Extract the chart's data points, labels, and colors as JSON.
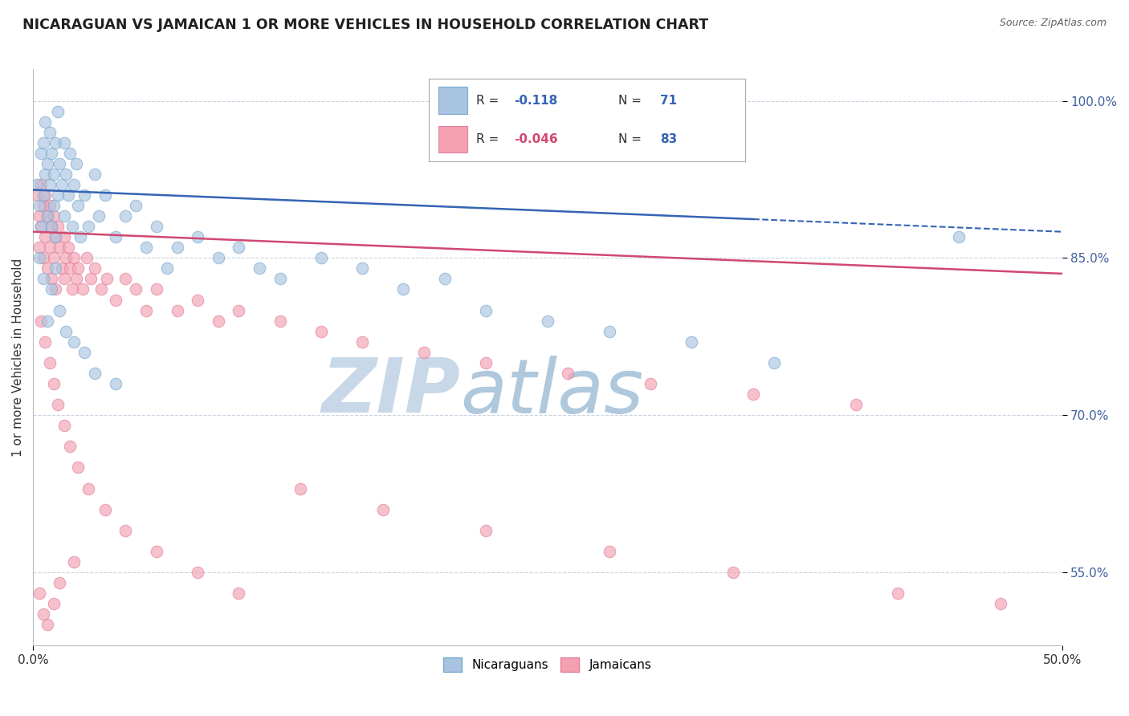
{
  "title": "NICARAGUAN VS JAMAICAN 1 OR MORE VEHICLES IN HOUSEHOLD CORRELATION CHART",
  "source": "Source: ZipAtlas.com",
  "ylabel": "1 or more Vehicles in Household",
  "xmin": 0.0,
  "xmax": 50.0,
  "ymin": 48.0,
  "ymax": 103.0,
  "ytick_vals": [
    55.0,
    70.0,
    85.0,
    100.0
  ],
  "ytick_labels": [
    "55.0%",
    "70.0%",
    "85.0%",
    "100.0%"
  ],
  "blue_scatter_x": [
    0.2,
    0.3,
    0.4,
    0.4,
    0.5,
    0.5,
    0.6,
    0.6,
    0.7,
    0.7,
    0.8,
    0.8,
    0.9,
    0.9,
    1.0,
    1.0,
    1.1,
    1.1,
    1.2,
    1.2,
    1.3,
    1.4,
    1.5,
    1.5,
    1.6,
    1.7,
    1.8,
    1.9,
    2.0,
    2.1,
    2.2,
    2.3,
    2.5,
    2.7,
    3.0,
    3.2,
    3.5,
    4.0,
    4.5,
    5.0,
    5.5,
    6.0,
    6.5,
    7.0,
    8.0,
    9.0,
    10.0,
    11.0,
    12.0,
    14.0,
    16.0,
    18.0,
    20.0,
    22.0,
    25.0,
    28.0,
    32.0,
    36.0,
    0.3,
    0.5,
    0.7,
    0.9,
    1.1,
    1.3,
    1.6,
    2.0,
    2.5,
    3.0,
    4.0,
    45.0
  ],
  "blue_scatter_y": [
    92.0,
    90.0,
    95.0,
    88.0,
    96.0,
    91.0,
    93.0,
    98.0,
    94.0,
    89.0,
    97.0,
    92.0,
    95.0,
    88.0,
    93.0,
    90.0,
    96.0,
    87.0,
    91.0,
    99.0,
    94.0,
    92.0,
    96.0,
    89.0,
    93.0,
    91.0,
    95.0,
    88.0,
    92.0,
    94.0,
    90.0,
    87.0,
    91.0,
    88.0,
    93.0,
    89.0,
    91.0,
    87.0,
    89.0,
    90.0,
    86.0,
    88.0,
    84.0,
    86.0,
    87.0,
    85.0,
    86.0,
    84.0,
    83.0,
    85.0,
    84.0,
    82.0,
    83.0,
    80.0,
    79.0,
    78.0,
    77.0,
    75.0,
    85.0,
    83.0,
    79.0,
    82.0,
    84.0,
    80.0,
    78.0,
    77.0,
    76.0,
    74.0,
    73.0,
    87.0
  ],
  "pink_scatter_x": [
    0.2,
    0.3,
    0.3,
    0.4,
    0.4,
    0.5,
    0.5,
    0.6,
    0.6,
    0.7,
    0.7,
    0.8,
    0.8,
    0.9,
    0.9,
    1.0,
    1.0,
    1.1,
    1.1,
    1.2,
    1.3,
    1.4,
    1.5,
    1.5,
    1.6,
    1.7,
    1.8,
    1.9,
    2.0,
    2.1,
    2.2,
    2.4,
    2.6,
    2.8,
    3.0,
    3.3,
    3.6,
    4.0,
    4.5,
    5.0,
    5.5,
    6.0,
    7.0,
    8.0,
    9.0,
    10.0,
    12.0,
    14.0,
    16.0,
    19.0,
    22.0,
    26.0,
    30.0,
    35.0,
    40.0,
    0.4,
    0.6,
    0.8,
    1.0,
    1.2,
    1.5,
    1.8,
    2.2,
    2.7,
    3.5,
    4.5,
    6.0,
    8.0,
    10.0,
    13.0,
    17.0,
    22.0,
    28.0,
    34.0,
    42.0,
    47.0,
    0.3,
    0.5,
    0.7,
    1.0,
    1.3,
    2.0
  ],
  "pink_scatter_y": [
    91.0,
    89.0,
    86.0,
    92.0,
    88.0,
    90.0,
    85.0,
    91.0,
    87.0,
    89.0,
    84.0,
    90.0,
    86.0,
    88.0,
    83.0,
    89.0,
    85.0,
    87.0,
    82.0,
    88.0,
    86.0,
    84.0,
    87.0,
    83.0,
    85.0,
    86.0,
    84.0,
    82.0,
    85.0,
    83.0,
    84.0,
    82.0,
    85.0,
    83.0,
    84.0,
    82.0,
    83.0,
    81.0,
    83.0,
    82.0,
    80.0,
    82.0,
    80.0,
    81.0,
    79.0,
    80.0,
    79.0,
    78.0,
    77.0,
    76.0,
    75.0,
    74.0,
    73.0,
    72.0,
    71.0,
    79.0,
    77.0,
    75.0,
    73.0,
    71.0,
    69.0,
    67.0,
    65.0,
    63.0,
    61.0,
    59.0,
    57.0,
    55.0,
    53.0,
    63.0,
    61.0,
    59.0,
    57.0,
    55.0,
    53.0,
    52.0,
    53.0,
    51.0,
    50.0,
    52.0,
    54.0,
    56.0
  ],
  "blue_line_x0": 0.0,
  "blue_line_y0": 91.5,
  "blue_line_x1": 50.0,
  "blue_line_y1": 87.5,
  "blue_solid_end": 35.0,
  "pink_line_x0": 0.0,
  "pink_line_y0": 87.5,
  "pink_line_x1": 50.0,
  "pink_line_y1": 83.5,
  "blue_color": "#a8c4e0",
  "blue_edge_color": "#7aaace",
  "pink_color": "#f4a0b0",
  "pink_edge_color": "#e080a0",
  "blue_line_color": "#3464b4",
  "pink_line_color": "#d04870",
  "grid_color": "#c8d4e4",
  "watermark_zip": "ZIP",
  "watermark_atlas": "atlas",
  "watermark_color_zip": "#c8d8e8",
  "watermark_color_atlas": "#b0c8dc",
  "title_color": "#202020",
  "axis_tick_color": "#4060a0",
  "ylabel_color": "#303030",
  "source_color": "#606060",
  "legend_r_color": "#303030",
  "legend_n_color": "#303030",
  "legend_blue_val_color": "#3464b4",
  "legend_pink_val_color": "#d04870",
  "legend_n_val_color": "#3464b4"
}
